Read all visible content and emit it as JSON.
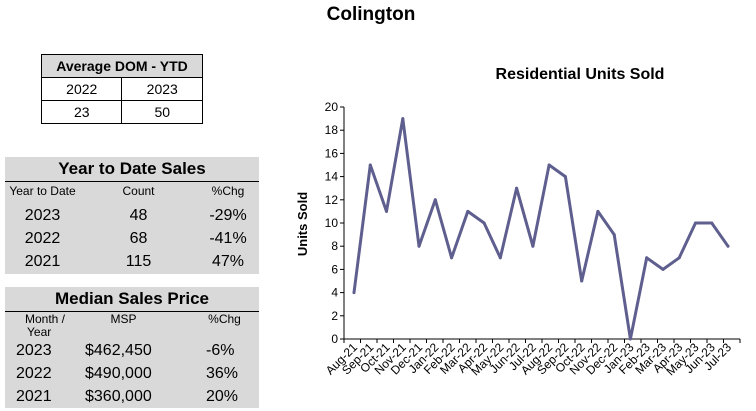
{
  "page_title": "Colington",
  "dom_table": {
    "header": "Average DOM - YTD",
    "columns": [
      "2022",
      "2023"
    ],
    "values": [
      "23",
      "50"
    ]
  },
  "ytd_sales": {
    "title": "Year to Date Sales",
    "headers": [
      "Year to Date",
      "Count",
      "%Chg"
    ],
    "rows": [
      [
        "2023",
        "48",
        "-29%"
      ],
      [
        "2022",
        "68",
        "-41%"
      ],
      [
        "2021",
        "115",
        "47%"
      ]
    ]
  },
  "median_price": {
    "title": "Median Sales Price",
    "headers": [
      "Month /",
      "Year",
      "MSP",
      "%Chg"
    ],
    "rows": [
      [
        "2023",
        "$462,450",
        "-6%"
      ],
      [
        "2022",
        "$490,000",
        "36%"
      ],
      [
        "2021",
        "$360,000",
        "20%"
      ]
    ]
  },
  "chart_data": {
    "type": "line",
    "title": "Residential Units Sold",
    "xlabel": "",
    "ylabel": "Units Sold",
    "ylim": [
      0,
      20
    ],
    "yticks": [
      0,
      2,
      4,
      6,
      8,
      10,
      12,
      14,
      16,
      18,
      20
    ],
    "grid": false,
    "line_color": "#5f5f8f",
    "categories": [
      "Aug-21",
      "Sep-21",
      "Oct-21",
      "Nov-21",
      "Dec-21",
      "Jan-22",
      "Feb-22",
      "Mar-22",
      "Apr-22",
      "May-22",
      "Jun-22",
      "Jul-22",
      "Aug-22",
      "Sep-22",
      "Oct-22",
      "Nov-22",
      "Dec-22",
      "Jan-23",
      "Feb-23",
      "Mar-23",
      "Apr-23",
      "May-23",
      "Jun-23",
      "Jul-23"
    ],
    "series": [
      {
        "name": "Residential Units Sold",
        "values": [
          4,
          15,
          11,
          19,
          8,
          12,
          7,
          11,
          10,
          7,
          13,
          8,
          15,
          14,
          5,
          11,
          9,
          0,
          7,
          6,
          7,
          10,
          10,
          8
        ]
      }
    ]
  }
}
